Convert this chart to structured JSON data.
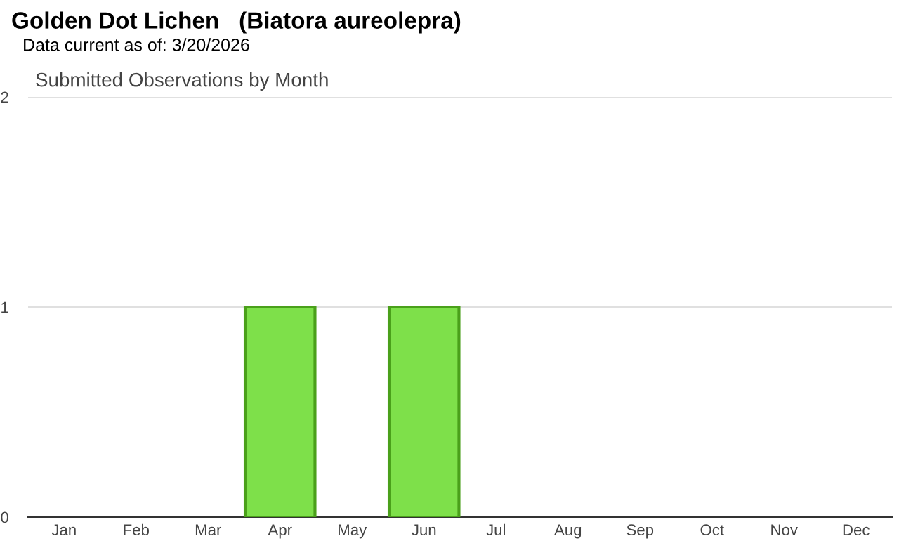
{
  "chart_data": {
    "type": "bar",
    "title": "Golden Dot Lichen   (Biatora aureolepra)",
    "subtitle": "Data current as of: 3/20/2026",
    "annotations": [
      "Submitted Observations by Month"
    ],
    "categories": [
      "Jan",
      "Feb",
      "Mar",
      "Apr",
      "May",
      "Jun",
      "Jul",
      "Aug",
      "Sep",
      "Oct",
      "Nov",
      "Dec"
    ],
    "values": [
      0,
      0,
      0,
      1,
      0,
      1,
      0,
      0,
      0,
      0,
      0,
      0
    ],
    "color": "#7ee04a",
    "ylim": [
      0,
      2
    ],
    "yticks": [
      0,
      1,
      2
    ],
    "grid": "y",
    "legend": false
  }
}
